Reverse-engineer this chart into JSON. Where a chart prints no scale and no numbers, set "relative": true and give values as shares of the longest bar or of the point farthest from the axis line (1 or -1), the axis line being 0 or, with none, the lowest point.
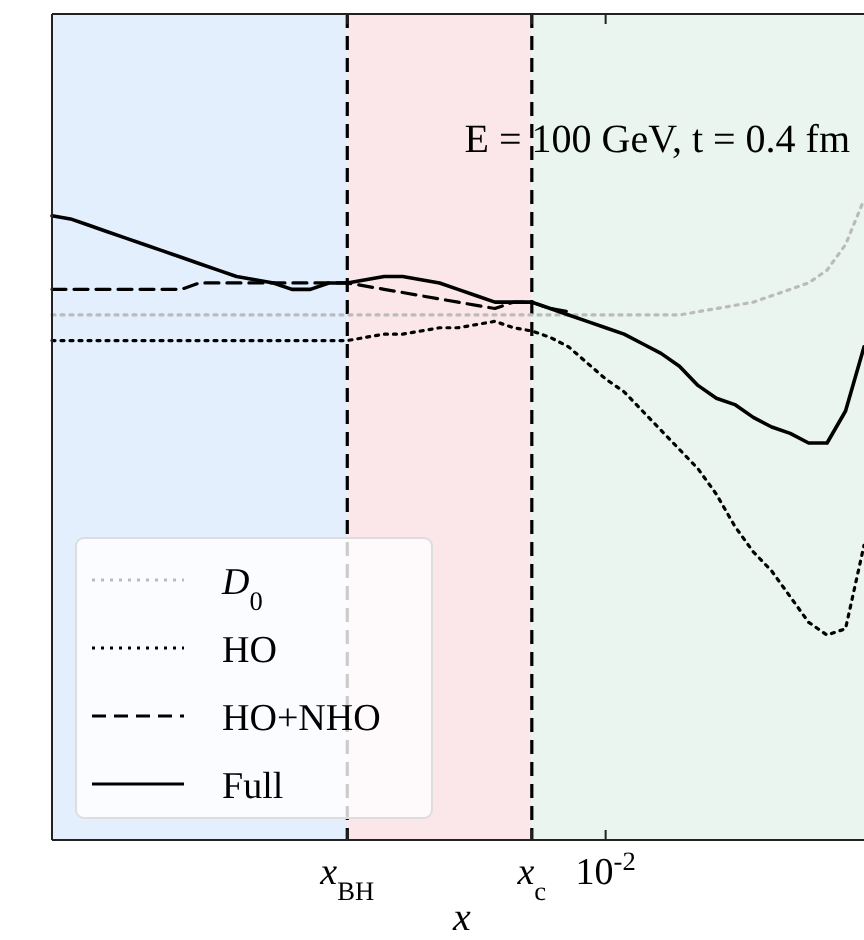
{
  "chart_data": {
    "type": "line",
    "relative": true,
    "xlabel": "x",
    "annotations": [
      "E = 100 GeV, t = 0.4 fm"
    ],
    "categories": [
      null,
      null,
      null,
      null,
      null,
      null,
      null,
      null,
      null,
      null,
      null,
      null,
      null,
      null,
      null,
      null,
      "x$_{BH}$",
      null,
      null,
      null,
      null,
      null,
      null,
      null,
      null,
      null,
      "x$_{c}$",
      null,
      null,
      null,
      "10$^{-2}$",
      null,
      null,
      null,
      null,
      null,
      null,
      null,
      null,
      null,
      null,
      null,
      null,
      null,
      null
    ],
    "bands": [
      {
        "axis": "x",
        "from": "x$_{BH}$",
        "to": "x$_{c}$",
        "color": "#fbe7ea"
      }
    ],
    "ref_lines": [
      {
        "axis": "x",
        "value": "x$_{BH}$",
        "color": "#000000",
        "line_style": "dashed"
      },
      {
        "axis": "x",
        "value": "x$_{c}$",
        "color": "#000000",
        "line_style": "dashed"
      }
    ],
    "legend": "bottom left",
    "marker": "none",
    "series": [
      {
        "name": "D$_{0}$",
        "color": "#bbbbbb",
        "line_style": "dotted",
        "values": [
          0.82,
          0.82,
          0.82,
          0.82,
          0.82,
          0.82,
          0.82,
          0.82,
          0.82,
          0.82,
          0.82,
          0.82,
          0.82,
          0.82,
          0.82,
          0.82,
          0.82,
          0.82,
          0.82,
          0.82,
          0.82,
          0.82,
          0.82,
          0.82,
          0.82,
          0.82,
          0.82,
          0.82,
          0.82,
          0.82,
          0.82,
          0.82,
          0.82,
          0.82,
          0.82,
          0.825,
          0.83,
          0.835,
          0.84,
          0.85,
          0.86,
          0.87,
          0.89,
          0.93,
          1
        ]
      },
      {
        "name": "HO",
        "color": "#000000",
        "line_style": "dotted",
        "values": [
          0.78,
          0.78,
          0.78,
          0.78,
          0.78,
          0.78,
          0.78,
          0.78,
          0.78,
          0.78,
          0.78,
          0.78,
          0.78,
          0.78,
          0.78,
          0.78,
          0.78,
          0.785,
          0.79,
          0.79,
          0.795,
          0.8,
          0.8,
          0.805,
          0.81,
          0.8,
          0.795,
          0.785,
          0.77,
          0.745,
          0.72,
          0.7,
          0.67,
          0.64,
          0.61,
          0.58,
          0.54,
          0.49,
          0.45,
          0.42,
          0.38,
          0.34,
          0.32,
          0.33,
          0.46
        ]
      },
      {
        "name": "HO+NHO",
        "color": "#000000",
        "line_style": "dashed",
        "values": [
          0.86,
          0.86,
          0.86,
          0.86,
          0.86,
          0.86,
          0.86,
          0.86,
          0.87,
          0.87,
          0.87,
          0.87,
          0.87,
          0.87,
          0.87,
          0.87,
          0.87,
          0.865,
          0.86,
          0.855,
          0.85,
          0.845,
          0.84,
          0.835,
          0.83,
          0.84,
          0.84,
          0.83,
          0.825,
          null,
          null,
          null,
          null,
          null,
          null,
          null,
          null,
          null,
          null,
          null,
          null,
          null,
          null,
          null,
          null
        ]
      },
      {
        "name": "Full",
        "color": "#000000",
        "line_style": "solid",
        "values": [
          0.975,
          0.97,
          0.96,
          0.95,
          0.94,
          0.93,
          0.92,
          0.91,
          0.9,
          0.89,
          0.88,
          0.875,
          0.87,
          0.86,
          0.86,
          0.87,
          0.87,
          0.875,
          0.88,
          0.88,
          0.875,
          0.87,
          0.86,
          0.85,
          0.84,
          0.84,
          0.84,
          0.83,
          0.82,
          0.81,
          0.8,
          0.79,
          0.775,
          0.76,
          0.74,
          0.71,
          0.69,
          0.68,
          0.66,
          0.645,
          0.635,
          0.62,
          0.62,
          0.67,
          0.77
        ]
      }
    ]
  }
}
